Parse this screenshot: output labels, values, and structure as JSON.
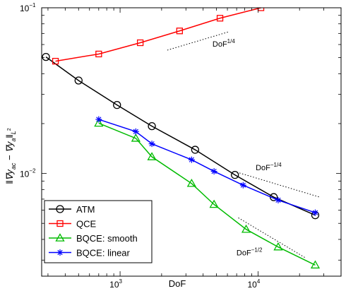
{
  "chart_data": {
    "type": "line",
    "xscale": "log",
    "yscale": "log",
    "xlim": [
      270,
      40000
    ],
    "ylim": [
      0.0024,
      0.1
    ],
    "grid": false,
    "legend_position": "bottom-left",
    "xlabel": "DoF",
    "ylabel_main": "‖∇y",
    "ylabel_sub1": "ac",
    "ylabel_mid": " − ∇y",
    "ylabel_sub2": "a",
    "ylabel_end": "‖",
    "ylabel_norm": "L",
    "ylabel_norm_sup": "2",
    "x_ticks": [
      {
        "value": 1000,
        "base": "10",
        "exp": "3"
      },
      {
        "value": 10000,
        "base": "10",
        "exp": "4"
      }
    ],
    "y_ticks": [
      {
        "value": 0.01,
        "base": "10",
        "exp": "−2"
      },
      {
        "value": 0.1,
        "base": "10",
        "exp": "−1"
      }
    ],
    "series": [
      {
        "name": "ATM",
        "color": "#000000",
        "marker": "circle",
        "x": [
          290,
          500,
          950,
          1700,
          3500,
          6800,
          13000,
          26000
        ],
        "y": [
          0.0505,
          0.0364,
          0.0259,
          0.0193,
          0.0139,
          0.0098,
          0.0072,
          0.0056
        ]
      },
      {
        "name": "QCE",
        "color": "#ff0000",
        "marker": "square",
        "x": [
          340,
          700,
          1400,
          2700,
          5300,
          10500
        ],
        "y": [
          0.0476,
          0.0526,
          0.0615,
          0.0725,
          0.0865,
          0.1
        ]
      },
      {
        "name": "BQCE: smooth",
        "color": "#00bb00",
        "marker": "triangle",
        "x": [
          700,
          1300,
          1700,
          3300,
          4800,
          8200,
          14000,
          26000
        ],
        "y": [
          0.0201,
          0.0163,
          0.0126,
          0.0087,
          0.0065,
          0.0046,
          0.0036,
          0.0028
        ]
      },
      {
        "name": "BQCE: linear",
        "color": "#0000ff",
        "marker": "star",
        "x": [
          700,
          1300,
          1700,
          3300,
          4800,
          7800,
          14000,
          26000
        ],
        "y": [
          0.0212,
          0.0179,
          0.0151,
          0.0121,
          0.0103,
          0.0085,
          0.0069,
          0.0058
        ]
      }
    ],
    "reference_lines": [
      {
        "label": "DoF",
        "exp": "1/4",
        "x": [
          2200,
          6200
        ],
        "y": [
          0.0555,
          0.0718
        ]
      },
      {
        "label": "DoF",
        "exp": "−1/4",
        "x": [
          6700,
          28000
        ],
        "y": [
          0.0103,
          0.0072
        ]
      },
      {
        "label": "DoF",
        "exp": "−1/2",
        "x": [
          7200,
          22000
        ],
        "y": [
          0.0054,
          0.0031
        ]
      }
    ],
    "legend": {
      "entries": [
        "ATM",
        "QCE",
        "BQCE: smooth",
        "BQCE: linear"
      ]
    }
  }
}
